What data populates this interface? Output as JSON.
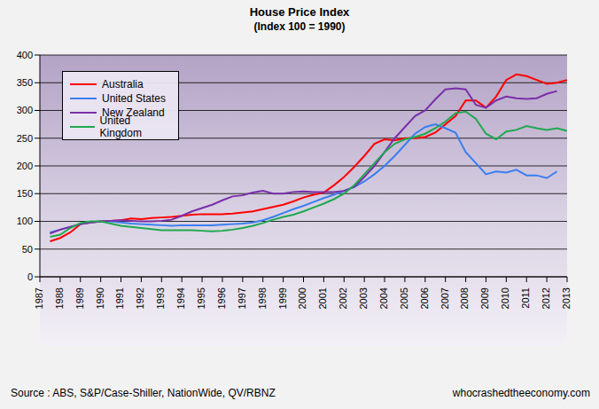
{
  "chart_data": {
    "type": "line",
    "title": "House Price Index",
    "subtitle": "(Index 100 = 1990)",
    "annotations": [
      "Source : ABS, S&P/Case-Shiller, NationWide, QV/RBNZ",
      "whocrashedtheeconomy.com"
    ],
    "x": [
      1987.5,
      1988,
      1988.5,
      1989,
      1989.5,
      1990,
      1990.5,
      1991,
      1991.5,
      1992,
      1992.5,
      1993,
      1993.5,
      1994,
      1994.5,
      1995,
      1995.5,
      1996,
      1996.5,
      1997,
      1997.5,
      1998,
      1998.5,
      1999,
      1999.5,
      2000,
      2000.5,
      2001,
      2001.5,
      2002,
      2002.5,
      2003,
      2003.5,
      2004,
      2004.5,
      2005,
      2005.5,
      2006,
      2006.5,
      2007,
      2007.5,
      2008,
      2008.5,
      2009,
      2009.5,
      2010,
      2010.5,
      2011,
      2011.5,
      2012,
      2012.5,
      2013
    ],
    "series": [
      {
        "name": "Australia",
        "color": "#ff0000",
        "values": [
          64,
          70,
          80,
          95,
          98,
          100,
          101,
          102,
          105,
          104,
          106,
          107,
          108,
          110,
          112,
          113,
          113,
          113,
          114,
          116,
          118,
          122,
          126,
          130,
          136,
          143,
          148,
          152,
          165,
          180,
          198,
          218,
          240,
          248,
          246,
          250,
          250,
          252,
          260,
          275,
          290,
          318,
          318,
          305,
          325,
          355,
          365,
          362,
          355,
          348,
          350,
          355
        ]
      },
      {
        "name": "United States",
        "color": "#3a7ff0",
        "values": [
          80,
          85,
          90,
          95,
          98,
          100,
          100,
          98,
          96,
          95,
          94,
          93,
          92,
          93,
          93,
          93,
          93,
          94,
          95,
          96,
          98,
          102,
          108,
          115,
          122,
          128,
          135,
          142,
          148,
          155,
          162,
          172,
          185,
          200,
          218,
          238,
          258,
          270,
          275,
          268,
          260,
          225,
          205,
          185,
          190,
          188,
          193,
          183,
          183,
          178,
          190,
          null
        ]
      },
      {
        "name": "New Zealand",
        "color": "#7a2fa8",
        "values": [
          78,
          85,
          90,
          95,
          98,
          100,
          101,
          102,
          101,
          100,
          100,
          101,
          103,
          110,
          118,
          124,
          130,
          138,
          145,
          147,
          152,
          155,
          150,
          150,
          153,
          154,
          153,
          153,
          153,
          155,
          162,
          180,
          200,
          225,
          250,
          270,
          290,
          300,
          320,
          338,
          340,
          338,
          310,
          305,
          318,
          325,
          322,
          321,
          322,
          330,
          335,
          null
        ]
      },
      {
        "name": "United Kingdom",
        "color": "#1fa84f",
        "values": [
          72,
          76,
          88,
          97,
          100,
          100,
          96,
          92,
          90,
          88,
          86,
          84,
          84,
          84,
          84,
          83,
          82,
          83,
          85,
          88,
          92,
          97,
          103,
          108,
          112,
          118,
          125,
          132,
          140,
          150,
          165,
          185,
          205,
          225,
          240,
          248,
          252,
          258,
          268,
          280,
          295,
          298,
          285,
          258,
          248,
          262,
          265,
          272,
          268,
          265,
          268,
          263
        ]
      }
    ],
    "xlim": [
      1987,
      2013
    ],
    "xticks": [
      1987,
      1988,
      1989,
      1990,
      1991,
      1992,
      1993,
      1994,
      1995,
      1996,
      1997,
      1998,
      1999,
      2000,
      2001,
      2002,
      2003,
      2004,
      2005,
      2006,
      2007,
      2008,
      2009,
      2010,
      2011,
      2012,
      2013
    ],
    "ylim": [
      0,
      400
    ],
    "yticks": [
      0,
      50,
      100,
      150,
      200,
      250,
      300,
      350,
      400
    ],
    "grid": true,
    "legend": "upper left"
  }
}
